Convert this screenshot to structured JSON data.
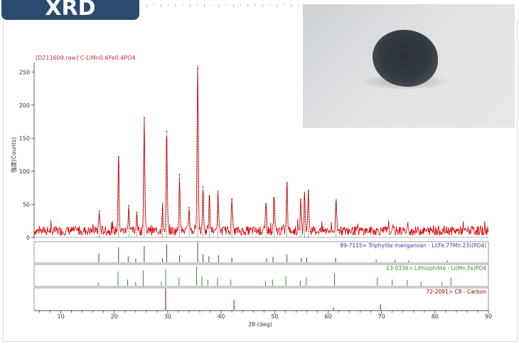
{
  "badge": {
    "label": "XRD"
  },
  "chart_data": {
    "type": "line",
    "title": "[D211609.raw] C-LiMn0.6Fe0.4PO4",
    "xlabel": "2θ (deg)",
    "ylabel": "強度(Counts)",
    "xlim": [
      5,
      90
    ],
    "ylim": [
      0,
      260
    ],
    "xticks": [
      10,
      20,
      30,
      40,
      50,
      60,
      70,
      80,
      90
    ],
    "yticks": [
      0,
      50,
      100,
      150,
      200,
      250
    ],
    "series": [
      {
        "color": "#d40000",
        "baseline": 10,
        "x": [
          17.2,
          20.8,
          22.7,
          24.2,
          25.6,
          29.0,
          29.8,
          32.2,
          34.0,
          35.6,
          36.6,
          37.8,
          39.4,
          42.0,
          48.4,
          49.9,
          52.3,
          54.9,
          55.6,
          56.3,
          61.5
        ],
        "y": [
          40,
          122,
          48,
          38,
          181,
          44,
          160,
          95,
          45,
          255,
          76,
          62,
          62,
          58,
          50,
          60,
          83,
          57,
          66,
          70,
          52
        ]
      }
    ],
    "references": [
      {
        "label": "89-7115> Triphylite manganoan - Li(Fe.77Mn.23)(PO4)",
        "color": "#3a3aa0",
        "x": [
          17.1,
          20.8,
          22.6,
          24.0,
          25.6,
          29.0,
          29.8,
          32.2,
          35.6,
          36.6,
          37.7,
          39.5,
          42.0,
          48.5,
          49.7,
          52.3,
          55.0,
          56.0,
          61.4,
          69.0,
          72.5,
          75.1,
          82.3
        ],
        "y": [
          45,
          75,
          30,
          18,
          80,
          20,
          90,
          35,
          100,
          40,
          30,
          35,
          25,
          20,
          28,
          38,
          22,
          25,
          22,
          12,
          12,
          10,
          10
        ]
      },
      {
        "label": "13-0336> Lithiophilite - Li(Mn,Fe)PO4",
        "color": "#3a8a3a",
        "x": [
          17.0,
          20.7,
          22.5,
          24.0,
          25.4,
          28.8,
          29.6,
          32.1,
          35.4,
          36.4,
          37.5,
          39.3,
          41.8,
          48.3,
          49.6,
          52.1,
          54.8,
          55.9,
          61.2,
          69.2,
          72.0,
          74.8,
          77.4,
          81.3,
          83.0
        ],
        "y": [
          15,
          70,
          30,
          18,
          75,
          20,
          80,
          40,
          95,
          45,
          30,
          40,
          30,
          22,
          30,
          45,
          25,
          40,
          60,
          40,
          30,
          28,
          20,
          18,
          40
        ]
      },
      {
        "label": "72-2091> C8 - Carbon",
        "color": "#8b0000",
        "x": [
          29.6,
          42.4,
          61.0,
          69.8
        ],
        "y": [
          100,
          45,
          10,
          25
        ]
      }
    ]
  }
}
